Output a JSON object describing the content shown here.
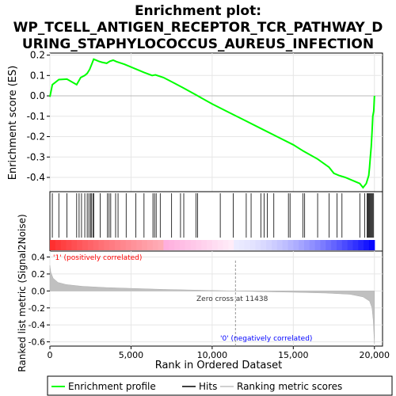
{
  "chart_data": {
    "type": "line",
    "title": "Enrichment plot: WP_TCELL_ANTIGEN_RECEPTOR_TCR_PATHWAY_DURING_STAPHYLOCOCCUS_AUREUS_INFECTION",
    "title_lines": [
      "Enrichment plot:",
      "WP_TCELL_ANTIGEN_RECEPTOR_TCR_PATHWAY_D",
      "URING_STAPHYLOCOCCUS_AUREUS_INFECTION"
    ],
    "xlabel": "Rank in Ordered Dataset",
    "xlim": [
      0,
      20500
    ],
    "x_ticks": [
      0,
      5000,
      10000,
      15000,
      20000
    ],
    "x_tick_labels": [
      "0",
      "5,000",
      "10,000",
      "15,000",
      "20,000"
    ],
    "enrichment": {
      "ylabel": "Enrichment score (ES)",
      "ylim": [
        -0.47,
        0.21
      ],
      "y_ticks": [
        -0.4,
        -0.3,
        -0.2,
        -0.1,
        0.0,
        0.1,
        0.2
      ],
      "y_tick_labels": [
        "-0.4",
        "-0.3",
        "-0.2",
        "-0.1",
        "0.0",
        "0.1",
        "0.2"
      ],
      "series_name": "Enrichment profile",
      "color": "#00ff00",
      "x": [
        0,
        150,
        550,
        1050,
        1650,
        1900,
        2150,
        2300,
        2450,
        2600,
        2700,
        3000,
        3200,
        3500,
        3700,
        3900,
        4100,
        4600,
        5200,
        5800,
        6300,
        6500,
        7000,
        7600,
        8200,
        9000,
        10000,
        11000,
        12000,
        13000,
        14000,
        15000,
        15600,
        16500,
        17200,
        17500,
        17800,
        18200,
        19100,
        19300,
        19500,
        19650,
        19700,
        19750,
        19800,
        19850,
        19900,
        19960,
        20000
      ],
      "y": [
        -0.005,
        0.055,
        0.08,
        0.082,
        0.055,
        0.09,
        0.1,
        0.11,
        0.13,
        0.16,
        0.18,
        0.17,
        0.165,
        0.16,
        0.17,
        0.175,
        0.168,
        0.155,
        0.135,
        0.115,
        0.1,
        0.103,
        0.09,
        0.065,
        0.04,
        0.005,
        -0.04,
        -0.08,
        -0.12,
        -0.16,
        -0.2,
        -0.24,
        -0.27,
        -0.31,
        -0.35,
        -0.38,
        -0.39,
        -0.4,
        -0.43,
        -0.45,
        -0.43,
        -0.39,
        -0.35,
        -0.3,
        -0.25,
        -0.18,
        -0.1,
        -0.075,
        0.0
      ]
    },
    "hits": [
      150,
      550,
      1050,
      1650,
      1800,
      1950,
      2150,
      2300,
      2400,
      2500,
      2550,
      2650,
      2700,
      3100,
      3550,
      3650,
      3750,
      4050,
      4200,
      4700,
      5300,
      5800,
      6350,
      6450,
      6550,
      6800,
      7500,
      8050,
      8250,
      9000,
      9100,
      10500,
      11300,
      12100,
      12400,
      13000,
      13200,
      13400,
      13800,
      14700,
      14800,
      15600,
      15700,
      16500,
      17200,
      17700,
      18000,
      19100,
      19400,
      19550,
      19600,
      19650,
      19700,
      19750,
      19800,
      19850,
      19900,
      19950
    ],
    "ranking_metric": {
      "ylabel": "Ranked list metric (Signal2Noise)",
      "ylim": [
        -0.65,
        0.47
      ],
      "y_ticks": [
        -0.6,
        -0.4,
        -0.2,
        0.0,
        0.2,
        0.4
      ],
      "y_tick_labels": [
        "-0.6",
        "-0.4",
        "-0.2",
        "0.0",
        "0.2",
        "0.4"
      ],
      "series_name": "Ranking metric scores",
      "x": [
        0,
        60,
        200,
        500,
        1000,
        2000,
        3500,
        5000,
        7000,
        9000,
        11438,
        13000,
        15000,
        17000,
        18500,
        19300,
        19700,
        19850,
        19930,
        19970,
        20000
      ],
      "y": [
        0.3,
        0.22,
        0.15,
        0.1,
        0.075,
        0.055,
        0.04,
        0.03,
        0.018,
        0.01,
        0.0,
        -0.008,
        -0.015,
        -0.025,
        -0.04,
        -0.07,
        -0.12,
        -0.2,
        -0.35,
        -0.5,
        -0.62
      ],
      "zero_cross_label": "Zero cross at 11438",
      "zero_cross": 11438,
      "pos_label": "'1' (positively correlated)",
      "neg_label": "'0' (negatively correlated)",
      "pos_color": "#ff0000",
      "neg_color": "#0000ff"
    },
    "legend": {
      "placement": "bottom",
      "entries": [
        {
          "label": "Enrichment profile",
          "color": "#00ff00"
        },
        {
          "label": "Hits",
          "color": "#000000"
        },
        {
          "label": "Ranking metric scores",
          "color": "#c0c0c0"
        }
      ]
    }
  }
}
